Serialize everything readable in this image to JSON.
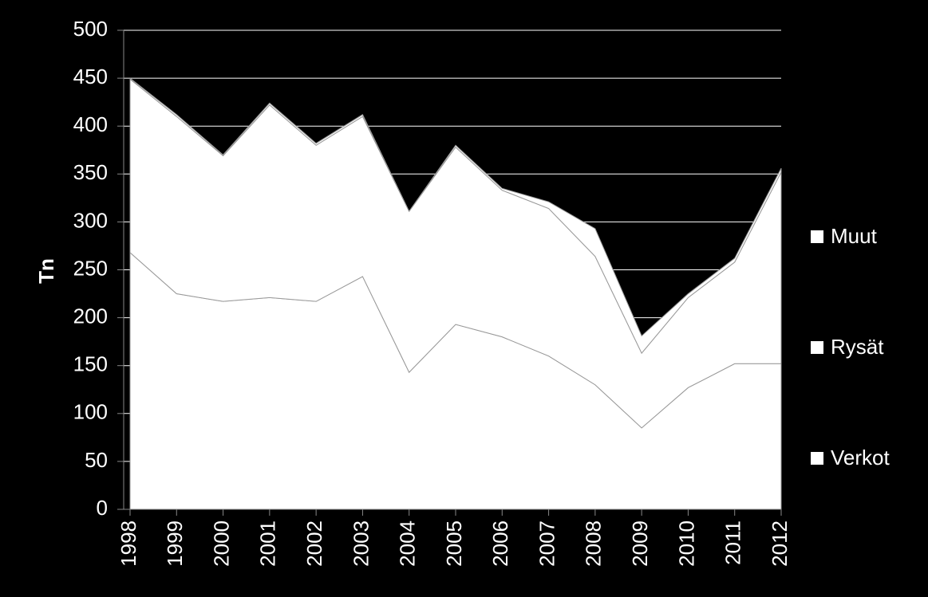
{
  "chart_data": {
    "type": "stacked-area",
    "y_label": "Tn",
    "x": [
      1998,
      1999,
      2000,
      2001,
      2002,
      2003,
      2004,
      2005,
      2006,
      2007,
      2008,
      2009,
      2010,
      2011,
      2012
    ],
    "series": [
      {
        "name": "Verkot",
        "color": "#ffffff",
        "values": [
          268,
          225,
          217,
          221,
          217,
          243,
          143,
          193,
          180,
          160,
          130,
          85,
          127,
          152,
          152
        ]
      },
      {
        "name": "Rysät",
        "color": "#ffffff",
        "values": [
          181,
          185,
          152,
          201,
          163,
          167,
          168,
          185,
          153,
          154,
          134,
          78,
          94,
          106,
          200
        ]
      },
      {
        "name": "Muut",
        "color": "#ffffff",
        "values": [
          1,
          2,
          1,
          2,
          2,
          2,
          0,
          2,
          2,
          7,
          29,
          18,
          4,
          4,
          4
        ]
      }
    ],
    "ylim": [
      0,
      500
    ],
    "yticks": [
      0,
      50,
      100,
      150,
      200,
      250,
      300,
      350,
      400,
      450,
      500
    ],
    "grid": true,
    "legend": "right"
  }
}
